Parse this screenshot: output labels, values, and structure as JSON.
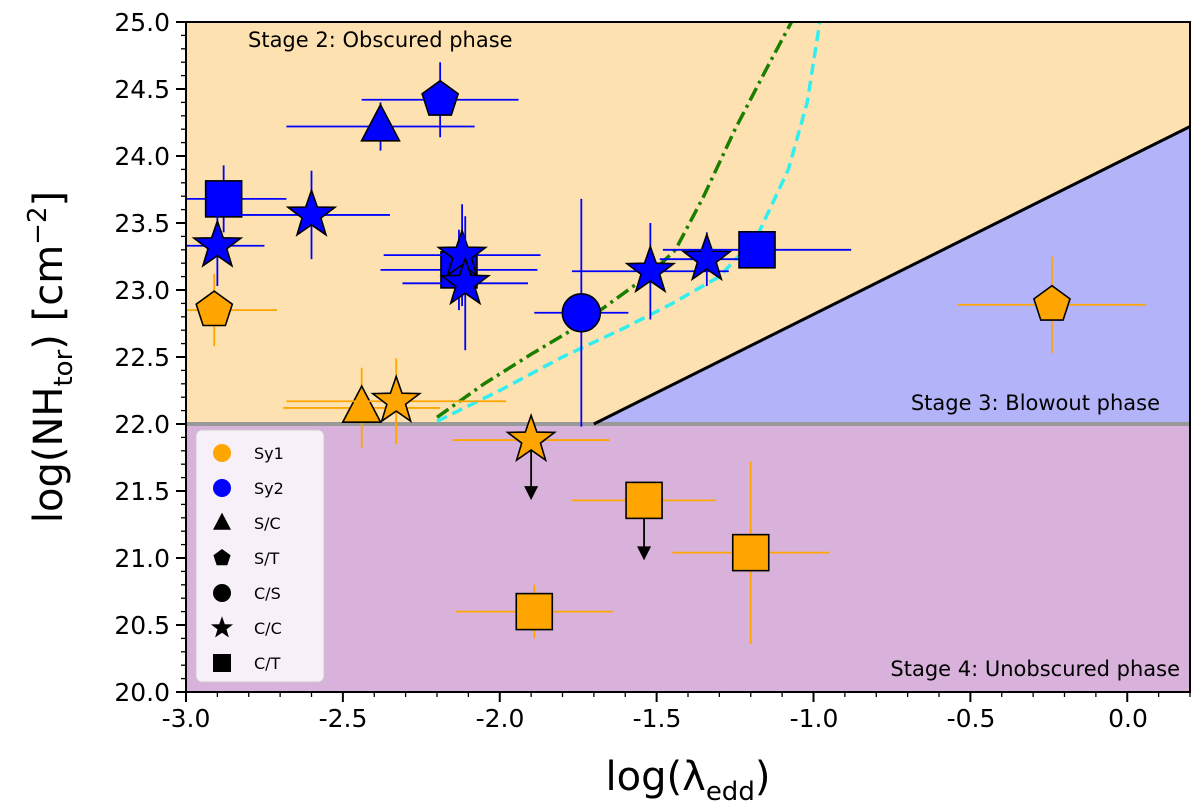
{
  "chart_data": {
    "type": "scatter",
    "xlabel_base": "log(λ",
    "xlabel_sub": "edd",
    "xlabel_close": ")",
    "ylabel_base": "log(NH",
    "ylabel_sub": "tor",
    "ylabel_unit": ") [cm",
    "ylabel_sup": "−2",
    "ylabel_close": "]",
    "xlim": [
      -3.0,
      0.2
    ],
    "ylim": [
      20.0,
      25.0
    ],
    "x_ticks": [
      -3.0,
      -2.5,
      -2.0,
      -1.5,
      -1.0,
      -0.5,
      0.0
    ],
    "x_tick_labels": [
      "-3.0",
      "-2.5",
      "-2.0",
      "-1.5",
      "-1.0",
      "-0.5",
      "0.0"
    ],
    "y_ticks": [
      20.0,
      20.5,
      21.0,
      21.5,
      22.0,
      22.5,
      23.0,
      23.5,
      24.0,
      24.5,
      25.0
    ],
    "y_tick_labels": [
      "20.0",
      "20.5",
      "21.0",
      "21.5",
      "22.0",
      "22.5",
      "23.0",
      "23.5",
      "24.0",
      "24.5",
      "25.0"
    ],
    "regions": [
      {
        "name": "Stage 2: Obscured phase",
        "color": "#fde1b0",
        "position": "top-left"
      },
      {
        "name": "Stage 3: Blowout phase",
        "color": "#b3b3f9",
        "position": "right"
      },
      {
        "name": "Stage 4: Unobscured phase",
        "color": "#d8b2db",
        "position": "bottom"
      }
    ],
    "boundary_lines": [
      {
        "name": "NH threshold",
        "color": "#999999",
        "points": [
          [
            -3.0,
            22.0
          ],
          [
            0.2,
            22.0
          ]
        ]
      },
      {
        "name": "blowout boundary",
        "color": "#000000",
        "points": [
          [
            -1.7,
            22.0
          ],
          [
            0.2,
            24.22
          ]
        ]
      }
    ],
    "curves": [
      {
        "name": "dash-dot",
        "color": "#1a7f00",
        "style": "dashdot",
        "points": [
          [
            -2.2,
            22.05
          ],
          [
            -2.05,
            22.3
          ],
          [
            -1.9,
            22.52
          ],
          [
            -1.75,
            22.73
          ],
          [
            -1.62,
            22.95
          ],
          [
            -1.52,
            23.12
          ],
          [
            -1.44,
            23.3
          ],
          [
            -1.35,
            23.7
          ],
          [
            -1.25,
            24.2
          ],
          [
            -1.15,
            24.65
          ],
          [
            -1.07,
            25.0
          ]
        ]
      },
      {
        "name": "dashed",
        "color": "#33eeee",
        "style": "dashed",
        "points": [
          [
            -2.2,
            22.02
          ],
          [
            -2.0,
            22.25
          ],
          [
            -1.8,
            22.5
          ],
          [
            -1.6,
            22.72
          ],
          [
            -1.45,
            22.9
          ],
          [
            -1.3,
            23.1
          ],
          [
            -1.18,
            23.4
          ],
          [
            -1.08,
            23.9
          ],
          [
            -1.02,
            24.4
          ],
          [
            -0.98,
            25.0
          ]
        ]
      }
    ],
    "colors": {
      "Sy1": "#ffa500",
      "Sy2": "#0000ff"
    },
    "points": [
      {
        "cls": "Sy2",
        "marker": "pentagon",
        "x": -2.19,
        "y": 24.42,
        "xerr": 0.25,
        "yerr": 0.28
      },
      {
        "cls": "Sy2",
        "marker": "triangle",
        "x": -2.38,
        "y": 24.22,
        "xerr": 0.3,
        "yerr": 0.18
      },
      {
        "cls": "Sy2",
        "marker": "square",
        "x": -2.88,
        "y": 23.68,
        "xerr": 0.2,
        "yerr": 0.25
      },
      {
        "cls": "Sy2",
        "marker": "star",
        "x": -2.6,
        "y": 23.56,
        "xerr": 0.25,
        "yerr": 0.33
      },
      {
        "cls": "Sy2",
        "marker": "star",
        "x": -2.9,
        "y": 23.33,
        "xerr": 0.15,
        "yerr": 0.3
      },
      {
        "cls": "Sy2",
        "marker": "square",
        "x": -2.13,
        "y": 23.15,
        "xerr": 0.25,
        "yerr": 0.3
      },
      {
        "cls": "Sy2",
        "marker": "star",
        "x": -2.12,
        "y": 23.26,
        "xerr": 0.25,
        "yerr": 0.38
      },
      {
        "cls": "Sy2",
        "marker": "star",
        "x": -2.11,
        "y": 23.05,
        "xerr": 0.2,
        "yerr": 0.5
      },
      {
        "cls": "Sy2",
        "marker": "circle",
        "x": -1.74,
        "y": 22.83,
        "xerr": 0.15,
        "yerr": 0.85
      },
      {
        "cls": "Sy2",
        "marker": "star",
        "x": -1.52,
        "y": 23.14,
        "xerr": 0.25,
        "yerr": 0.36
      },
      {
        "cls": "Sy2",
        "marker": "star",
        "x": -1.34,
        "y": 23.23,
        "xerr": 0.15,
        "yerr": 0.2
      },
      {
        "cls": "Sy2",
        "marker": "square",
        "x": -1.18,
        "y": 23.3,
        "xerr": 0.3,
        "yerr": 0.12
      },
      {
        "cls": "Sy1",
        "marker": "pentagon",
        "x": -2.91,
        "y": 22.85,
        "xerr": 0.2,
        "yerr": 0.27
      },
      {
        "cls": "Sy1",
        "marker": "triangle",
        "x": -2.44,
        "y": 22.12,
        "xerr": 0.25,
        "yerr": 0.3
      },
      {
        "cls": "Sy1",
        "marker": "star",
        "x": -2.33,
        "y": 22.17,
        "xerr": 0.35,
        "yerr": 0.32
      },
      {
        "cls": "Sy1",
        "marker": "star",
        "x": -1.9,
        "y": 21.88,
        "xerr": 0.25,
        "yerr": 0.1,
        "upper_limit": true
      },
      {
        "cls": "Sy1",
        "marker": "square",
        "x": -1.54,
        "y": 21.43,
        "xerr": 0.23,
        "yerr": 0.12,
        "upper_limit": true
      },
      {
        "cls": "Sy1",
        "marker": "square",
        "x": -1.2,
        "y": 21.04,
        "xerr": 0.25,
        "yerr": 0.68
      },
      {
        "cls": "Sy1",
        "marker": "square",
        "x": -1.89,
        "y": 20.6,
        "xerr": 0.25,
        "yerr": 0.2
      },
      {
        "cls": "Sy1",
        "marker": "pentagon",
        "x": -0.24,
        "y": 22.89,
        "xerr": 0.3,
        "yerr": 0.36
      }
    ],
    "legend": {
      "position": "bottom-left",
      "entries": [
        {
          "label": "Sy1",
          "marker": "circle",
          "color": "#ffa500"
        },
        {
          "label": "Sy2",
          "marker": "circle",
          "color": "#0000ff"
        },
        {
          "label": "S/C",
          "marker": "triangle",
          "color": "#000000"
        },
        {
          "label": "S/T",
          "marker": "pentagon",
          "color": "#000000"
        },
        {
          "label": "C/S",
          "marker": "circle",
          "color": "#000000"
        },
        {
          "label": "C/C",
          "marker": "star",
          "color": "#000000"
        },
        {
          "label": "C/T",
          "marker": "square",
          "color": "#000000"
        }
      ]
    }
  }
}
